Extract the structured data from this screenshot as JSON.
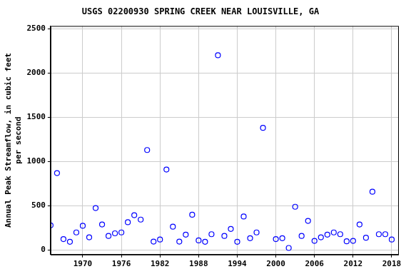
{
  "chart_data": {
    "type": "scatter",
    "title": "USGS 02200930 SPRING CREEK NEAR LOUISVILLE, GA",
    "y_label": [
      "Annual Peak Streamflow, in cubic feet",
      "per second"
    ],
    "x": [
      1965,
      1966,
      1967,
      1968,
      1969,
      1970,
      1971,
      1972,
      1973,
      1974,
      1975,
      1976,
      1977,
      1978,
      1979,
      1980,
      1981,
      1982,
      1983,
      1984,
      1985,
      1986,
      1987,
      1988,
      1989,
      1990,
      1991,
      1992,
      1993,
      1994,
      1995,
      1996,
      1997,
      1998,
      2000,
      2001,
      2002,
      2003,
      2004,
      2005,
      2006,
      2007,
      2008,
      2009,
      2010,
      2011,
      2012,
      2013,
      2014,
      2015,
      2016,
      2017,
      2018
    ],
    "values": [
      280,
      870,
      125,
      95,
      200,
      275,
      145,
      475,
      290,
      160,
      190,
      200,
      315,
      395,
      345,
      1130,
      97,
      120,
      910,
      265,
      97,
      175,
      400,
      110,
      95,
      180,
      2200,
      160,
      240,
      95,
      380,
      135,
      200,
      1380,
      125,
      135,
      25,
      490,
      160,
      330,
      105,
      145,
      175,
      200,
      180,
      100,
      105,
      290,
      140,
      660,
      180,
      180,
      120
    ],
    "color": "#0000ff",
    "marker": "open circle",
    "xlim": [
      1965,
      2019
    ],
    "xticks": [
      1970,
      1976,
      1982,
      1988,
      1994,
      2000,
      2006,
      2012,
      2018
    ],
    "ylim": [
      -50,
      2530
    ],
    "yticks": [
      0,
      500,
      1000,
      1500,
      2000,
      2500
    ],
    "grid": true
  }
}
